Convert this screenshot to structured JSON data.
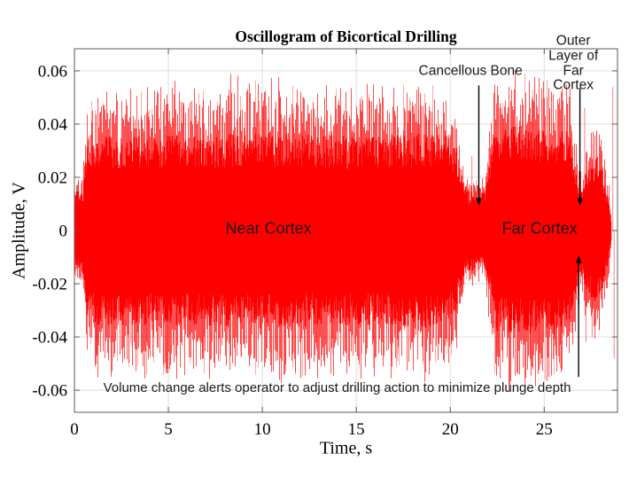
{
  "figure": {
    "background": "#ffffff"
  },
  "chart_data": {
    "type": "line",
    "subtype": "oscillogram-waveform",
    "title": "Oscillogram of Bicortical Drilling",
    "xlabel": "Time, s",
    "ylabel": "Amplitude, V",
    "xlim": [
      0,
      28.9
    ],
    "ylim": [
      -0.0683,
      0.0683
    ],
    "xticks": [
      0,
      5,
      10,
      15,
      20,
      25
    ],
    "xtick_labels": [
      "0",
      "5",
      "10",
      "15",
      "20",
      "25"
    ],
    "yticks": [
      -0.06,
      -0.04,
      -0.02,
      0,
      0.02,
      0.04,
      0.06
    ],
    "ytick_labels": [
      "-0.06",
      "-0.04",
      "-0.02",
      "0",
      "0.02",
      "0.04",
      "0.06"
    ],
    "grid": true,
    "grid_color": "#dcdcdc",
    "axis_color": "#595959",
    "tick_label_color": "#000000",
    "waveform_color": "#ff0000",
    "series_description": "Drilling sound oscillogram envelope; control points are [time_s, solid_core_amplitude_V, max_spike_amplitude_V]. Quiet dip 20.9-21.8 s = cancellous bone; bursts = near cortex (0.7-20.5 s) and far cortex (22.2-26.6 s); trailing bulge 27-28.4 s after breaching outer layer of far cortex.",
    "envelope": [
      [
        0.0,
        0.012,
        0.016
      ],
      [
        0.45,
        0.013,
        0.02
      ],
      [
        0.7,
        0.026,
        0.04
      ],
      [
        1.0,
        0.028,
        0.048
      ],
      [
        5.0,
        0.028,
        0.05
      ],
      [
        10.0,
        0.029,
        0.052
      ],
      [
        15.0,
        0.028,
        0.05
      ],
      [
        19.5,
        0.029,
        0.05
      ],
      [
        20.3,
        0.026,
        0.044
      ],
      [
        20.6,
        0.016,
        0.024
      ],
      [
        20.9,
        0.012,
        0.018
      ],
      [
        21.8,
        0.012,
        0.018
      ],
      [
        22.05,
        0.017,
        0.03
      ],
      [
        22.35,
        0.03,
        0.05
      ],
      [
        23.5,
        0.031,
        0.055
      ],
      [
        25.5,
        0.031,
        0.053
      ],
      [
        26.3,
        0.03,
        0.05
      ],
      [
        26.65,
        0.019,
        0.034
      ],
      [
        26.95,
        0.013,
        0.024
      ],
      [
        27.35,
        0.019,
        0.034
      ],
      [
        27.8,
        0.022,
        0.037
      ],
      [
        28.2,
        0.016,
        0.028
      ],
      [
        28.45,
        0.009,
        0.018
      ],
      [
        28.6,
        0.0,
        0.0
      ]
    ],
    "extra_spikes": [
      [
        21.15,
        0.028
      ],
      [
        27.15,
        0.046
      ],
      [
        27.22,
        -0.042
      ],
      [
        27.55,
        -0.04
      ],
      [
        28.65,
        0.054
      ],
      [
        28.72,
        -0.048
      ]
    ]
  },
  "annotations": {
    "near_cortex": {
      "text": "Near Cortex",
      "t": 10.33,
      "v": 0.0005
    },
    "far_cortex": {
      "text": "Far Cortex",
      "t": 24.76,
      "v": 0.0005
    },
    "cancellous_bone": {
      "text": "Cancellous Bone",
      "t": 21.08,
      "v": 0.0598,
      "arrow": {
        "t": 21.52,
        "v_from": 0.0545,
        "v_to": 0.0095,
        "direction": "down"
      }
    },
    "outer_layer": {
      "text": "Outer Layer of\nFar Cortex",
      "t": 26.55,
      "v": 0.0626,
      "arrow": {
        "t": 26.9,
        "v_from": 0.0535,
        "v_to": 0.0095,
        "direction": "down"
      }
    },
    "plunge_arrow": {
      "t": 26.83,
      "v_from": -0.055,
      "v_to": -0.0095,
      "direction": "up"
    },
    "volume_note": {
      "text": "Volume change alerts operator to adjust drilling action to minimize plunge depth",
      "t": 13.98,
      "v": -0.0593
    }
  }
}
